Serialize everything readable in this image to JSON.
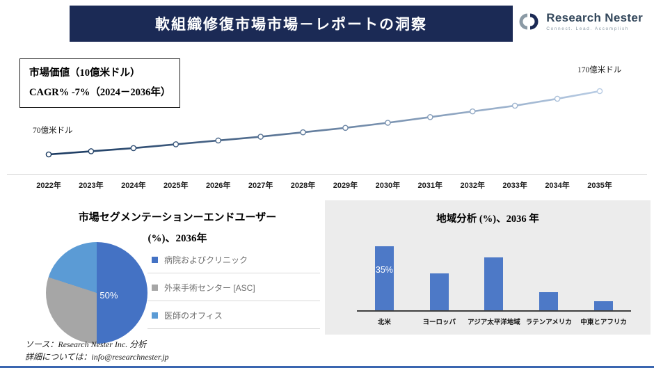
{
  "banner": {
    "title": "軟組織修復市場市場－レポートの洞察"
  },
  "logo": {
    "name": "Research Nester",
    "tagline": "Connect. Lead. Accomplish"
  },
  "chart_data": [
    {
      "type": "line",
      "title": "市場価値（10億米ドル）",
      "cagr_label": "CAGR% -7%（2024－2036年）",
      "x": [
        "2022年",
        "2023年",
        "2024年",
        "2025年",
        "2026年",
        "2027年",
        "2028年",
        "2029年",
        "2030年",
        "2031年",
        "2032年",
        "2033年",
        "2034年",
        "2035年"
      ],
      "values": [
        70,
        75,
        80,
        86,
        92,
        98,
        105,
        112,
        120,
        129,
        138,
        147,
        158,
        170
      ],
      "unit": "億米ドル",
      "start_label": "70億米ドル",
      "end_label": "170億米ドル",
      "ylim": [
        60,
        180
      ],
      "line_colors": [
        "#17375e",
        "#b8cce4"
      ]
    },
    {
      "type": "pie",
      "title_line1": "市場セグメンテーションーエンドユーザー",
      "title_line2": "(%)、2036年",
      "labels": [
        "病院およびクリニック",
        "外来手術センター [ASC]",
        "医師のオフィス"
      ],
      "values": [
        50,
        30,
        20
      ],
      "colors": [
        "#4472c4",
        "#a6a6a6",
        "#5b9bd5"
      ],
      "data_label": "50%",
      "legend_position": "right"
    },
    {
      "type": "bar",
      "title": "地域分析 (%)、2036 年",
      "categories": [
        "北米",
        "ヨーロッパ",
        "アジア太平洋地域",
        "ラテンアメリカ",
        "中東とアフリカ"
      ],
      "values": [
        35,
        20,
        29,
        10,
        5
      ],
      "bar_color": "#4d79c7",
      "data_label": "35%",
      "ylim": [
        0,
        40
      ]
    }
  ],
  "footer": {
    "source": "ソース：Research Nester Inc. 分析",
    "contact": "詳細については：info@researchnester.jp"
  }
}
